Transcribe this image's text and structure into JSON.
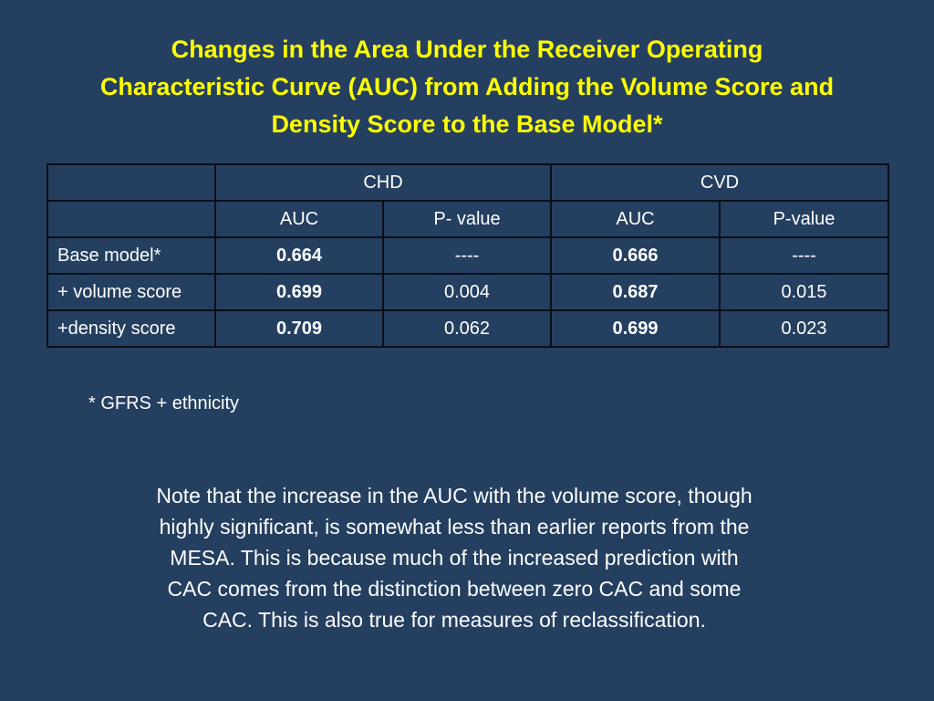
{
  "slide": {
    "title_lines": [
      "Changes in the Area Under the Receiver Operating",
      "Characteristic Curve (AUC) from Adding the Volume Score and",
      "Density Score to the Base Model*"
    ],
    "title_color": "#ffff00",
    "background_color": "#243f60"
  },
  "table": {
    "group_headers": [
      "CHD",
      "CVD"
    ],
    "sub_headers": [
      "AUC",
      "P- value",
      "AUC",
      "P-value"
    ],
    "rows": [
      {
        "label": "Base model*",
        "chd_auc": "0.664",
        "chd_p": "----",
        "cvd_auc": "0.666",
        "cvd_p": "----"
      },
      {
        "label": "+ volume score",
        "chd_auc": "0.699",
        "chd_p": "0.004",
        "cvd_auc": "0.687",
        "cvd_p": "0.015"
      },
      {
        "label": "+density score",
        "chd_auc": "0.709",
        "chd_p": "0.062",
        "cvd_auc": "0.699",
        "cvd_p": "0.023"
      }
    ]
  },
  "footnote": "* GFRS + ethnicity",
  "note_lines": [
    "Note that the increase in the AUC with the volume score, though",
    "highly significant, is somewhat less than earlier reports from the",
    "MESA.  This is because much of the increased prediction with",
    "CAC comes from the distinction between zero CAC and some",
    "CAC.  This is also true for measures of reclassification."
  ]
}
